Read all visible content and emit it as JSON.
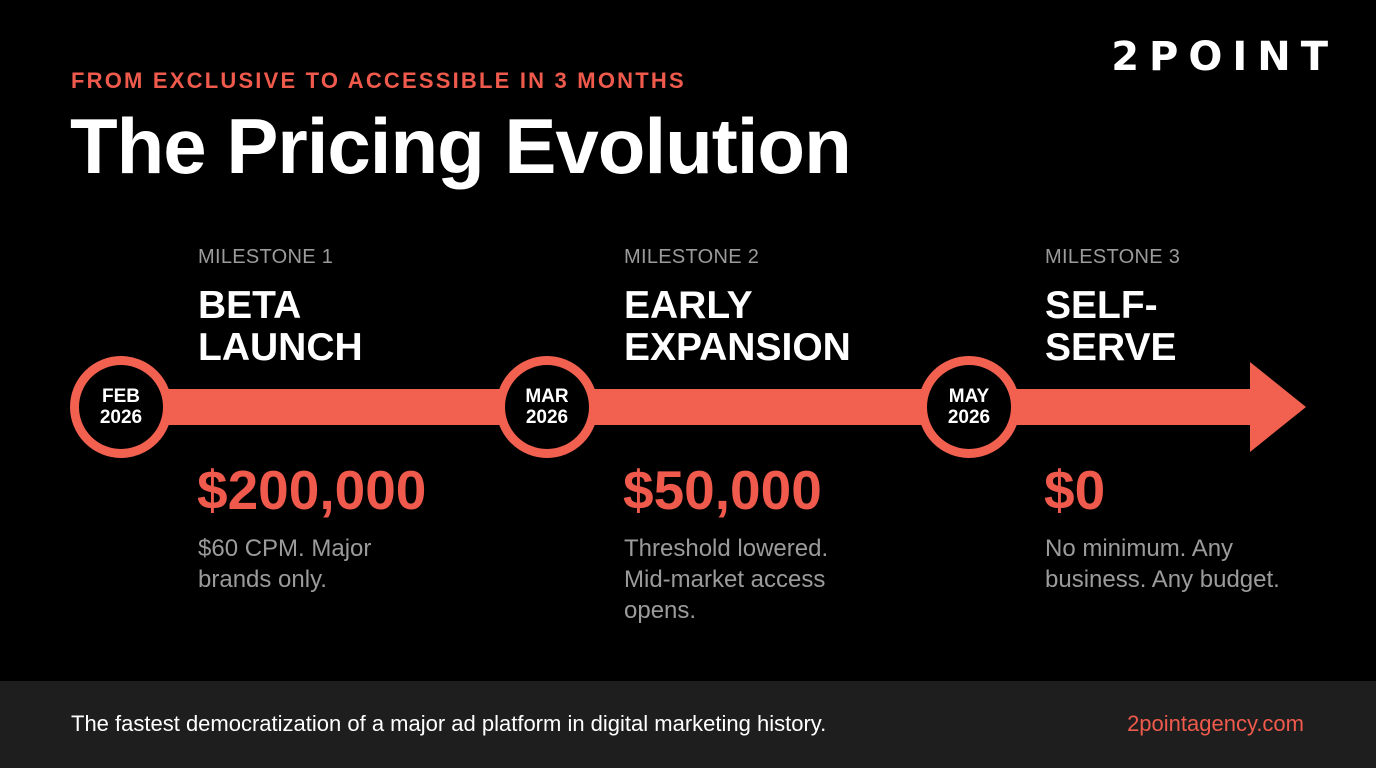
{
  "brand": {
    "logo_text": "2POINT"
  },
  "header": {
    "kicker": "FROM EXCLUSIVE TO ACCESSIBLE IN 3 MONTHS",
    "title": "The Pricing Evolution"
  },
  "colors": {
    "accent": "#f26150",
    "background": "#000000",
    "footer_bg": "#1e1e1e",
    "muted_text": "#9b9b9b"
  },
  "milestones": [
    {
      "label": "MILESTONE 1",
      "title": "BETA\nLAUNCH",
      "month": "FEB",
      "year": "2026",
      "price": "$200,000",
      "description": "$60 CPM. Major\nbrands only."
    },
    {
      "label": "MILESTONE 2",
      "title": "EARLY\nEXPANSION",
      "month": "MAR",
      "year": "2026",
      "price": "$50,000",
      "description": "Threshold lowered.\nMid-market access\nopens."
    },
    {
      "label": "MILESTONE 3",
      "title": "SELF-\nSERVE",
      "month": "MAY",
      "year": "2026",
      "price": "$0",
      "description": "No minimum. Any\nbusiness. Any budget."
    }
  ],
  "footer": {
    "text": "The fastest democratization of a major ad platform in digital marketing history.",
    "url": "2pointagency.com"
  }
}
